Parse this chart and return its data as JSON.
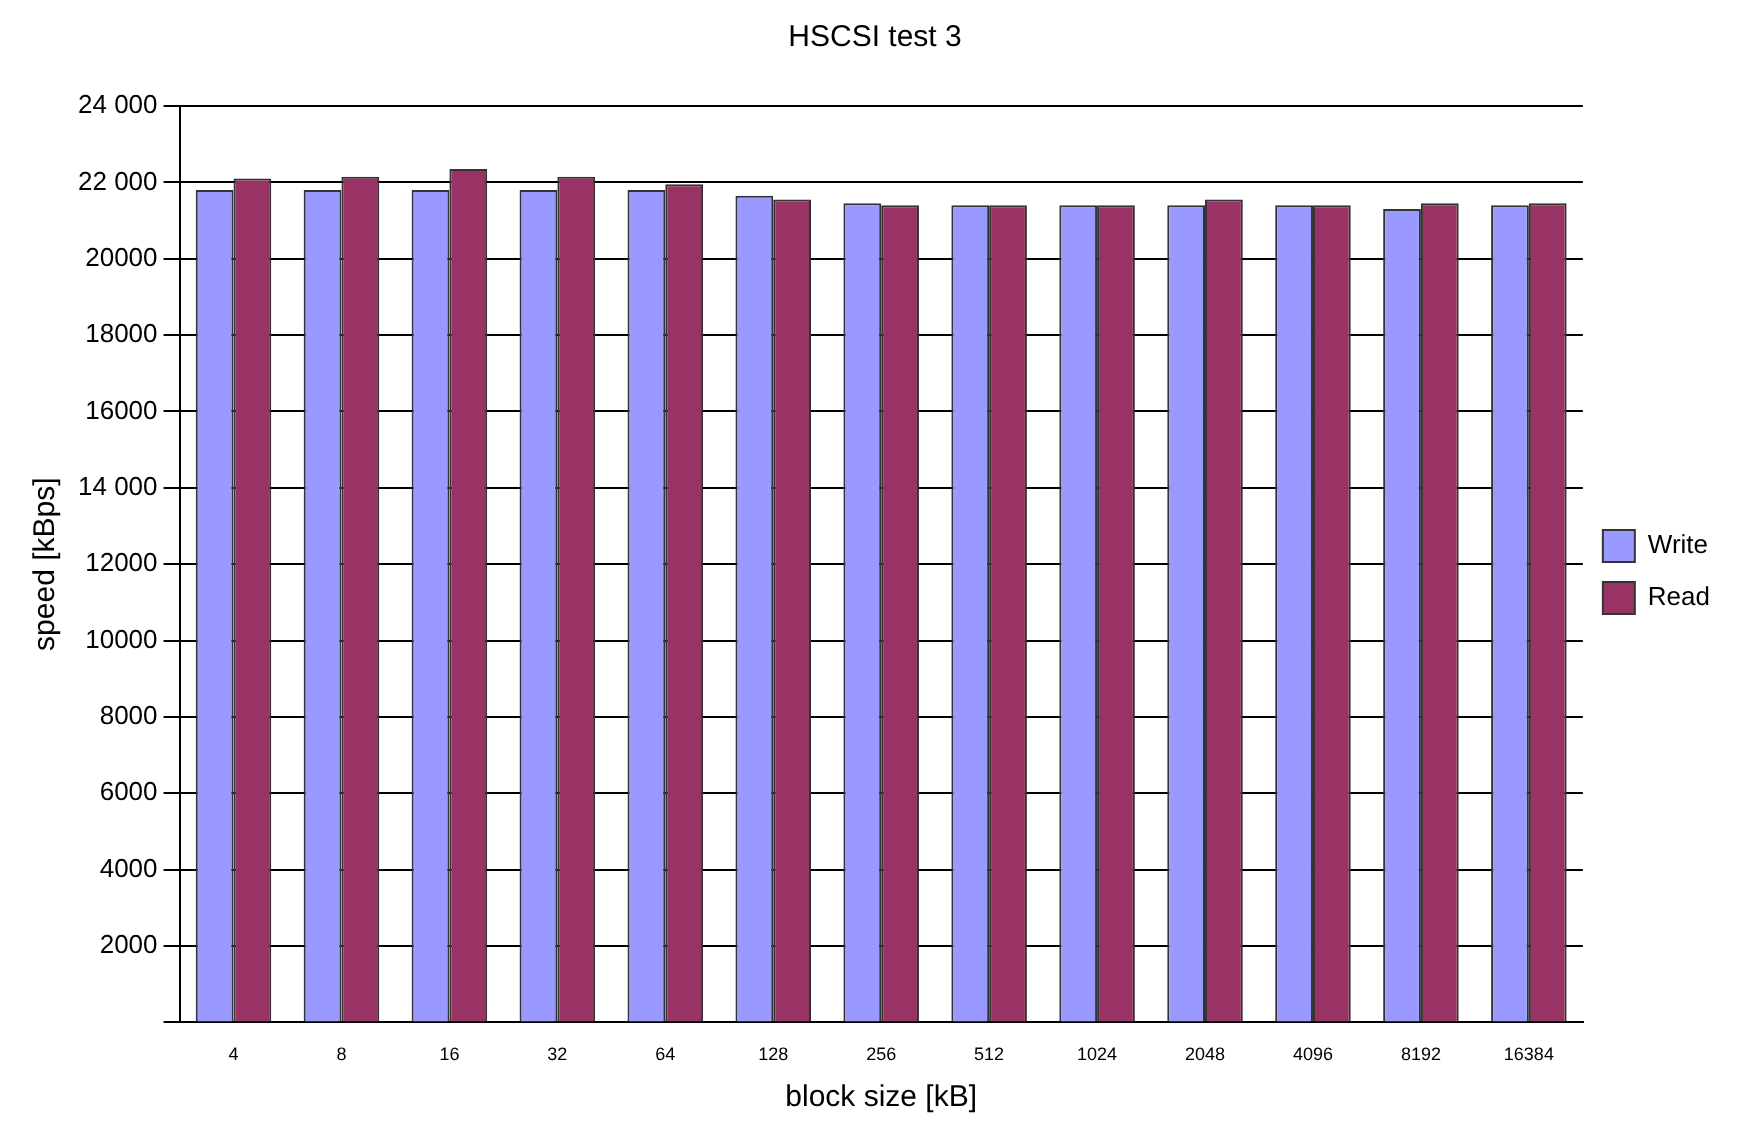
{
  "chart_data": {
    "type": "bar",
    "title": "HSCSI test 3",
    "xlabel": "block size [kB]",
    "ylabel": "speed [kBps]",
    "categories": [
      "4",
      "8",
      "16",
      "32",
      "64",
      "128",
      "256",
      "512",
      "1024",
      "2048",
      "4096",
      "8192",
      "16384"
    ],
    "series": [
      {
        "name": "Write",
        "color": "#9999ff",
        "values": [
          21800,
          21800,
          21800,
          21800,
          21800,
          21650,
          21450,
          21400,
          21400,
          21400,
          21400,
          21300,
          21400
        ]
      },
      {
        "name": "Read",
        "color": "#993366",
        "values": [
          22100,
          22150,
          22350,
          22150,
          21950,
          21550,
          21400,
          21400,
          21400,
          21550,
          21400,
          21450,
          21450
        ]
      }
    ],
    "ylim": [
      0,
      24000
    ],
    "yticks": [
      {
        "value": 0,
        "label": null
      },
      2000,
      4000,
      6000,
      8000,
      10000,
      12000,
      {
        "value": 14000,
        "label": "14 000"
      },
      16000,
      18000,
      20000,
      {
        "value": 22000,
        "label": "22 000"
      },
      {
        "value": 24000,
        "label": "24 000"
      }
    ],
    "grid": "y",
    "legend": "right"
  }
}
